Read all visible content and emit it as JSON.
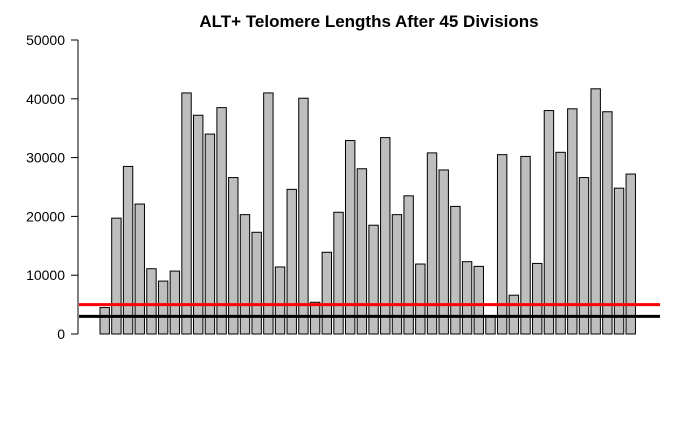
{
  "chart_data": {
    "type": "bar",
    "title": "ALT+ Telomere Lengths After  45 Divisions",
    "xlabel": "",
    "ylabel": "",
    "ylim": [
      0,
      50000
    ],
    "yticks": [
      0,
      10000,
      20000,
      30000,
      40000,
      50000
    ],
    "values": [
      4500,
      19700,
      28500,
      22100,
      11100,
      9000,
      10700,
      41000,
      37200,
      34000,
      38500,
      26600,
      20300,
      17300,
      41000,
      11400,
      24600,
      40100,
      5400,
      13900,
      20700,
      32900,
      28100,
      18500,
      33400,
      20300,
      23500,
      11900,
      30800,
      27900,
      21700,
      12300,
      11500,
      2900,
      30500,
      6600,
      30200,
      12000,
      38000,
      30900,
      38300,
      26600,
      41700,
      37800,
      24800,
      27200
    ],
    "bar_color": "#bebebe",
    "reference_lines": [
      {
        "value": 5000,
        "color": "#ff0000"
      },
      {
        "value": 3000,
        "color": "#000000"
      }
    ],
    "grid": false
  }
}
